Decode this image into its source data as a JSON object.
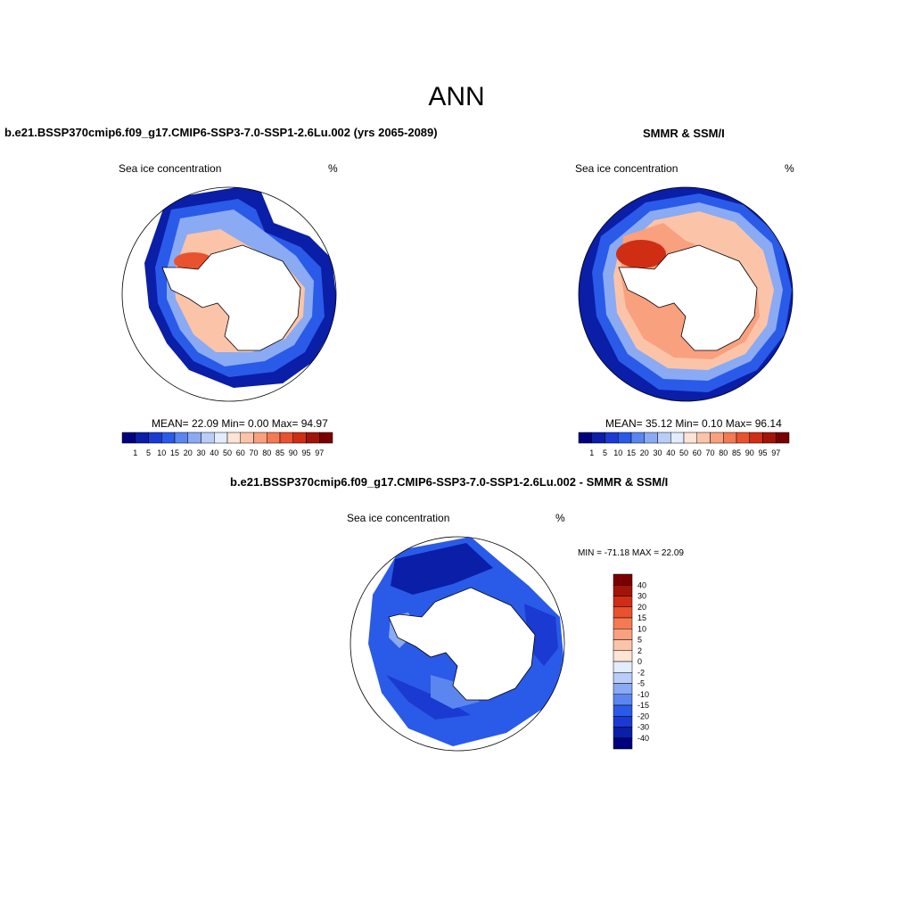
{
  "page": {
    "title": "ANN"
  },
  "panels": {
    "left": {
      "title": "b.e21.BSSP370cmip6.f09_g17.CMIP6-SSP3-7.0-SSP1-2.6Lu.002 (yrs 2065-2089)",
      "variable_label": "Sea ice concentration",
      "units": "%",
      "stats": "MEAN=  22.09  Min=   0.00  Max=  94.97"
    },
    "right": {
      "title": "SMMR & SSM/I",
      "variable_label": "Sea ice concentration",
      "units": "%",
      "stats": "MEAN=  35.12  Min=   0.10  Max=  96.14"
    },
    "diff": {
      "title": "b.e21.BSSP370cmip6.f09_g17.CMIP6-SSP3-7.0-SSP1-2.6Lu.002 - SMMR & SSM/I",
      "variable_label": "Sea ice concentration",
      "units": "%",
      "stats": "MIN = -71.18 MAX =  22.09"
    }
  },
  "colorbar_concentration": {
    "labels": [
      "1",
      "5",
      "10",
      "15",
      "20",
      "30",
      "40",
      "50",
      "60",
      "70",
      "80",
      "85",
      "90",
      "95",
      "97"
    ],
    "colors": [
      "#00007f",
      "#0a1ea8",
      "#1a3ad2",
      "#2a5ae8",
      "#5b86f0",
      "#8aaaf4",
      "#b8cdf8",
      "#e2ecfc",
      "#fde4d4",
      "#fbc4a8",
      "#f9a07e",
      "#f47a54",
      "#e9522e",
      "#cf2e14",
      "#a21408",
      "#7a0000"
    ]
  },
  "colorbar_difference": {
    "labels": [
      "40",
      "30",
      "20",
      "15",
      "10",
      "5",
      "2",
      "0",
      "-2",
      "-5",
      "-10",
      "-15",
      "-20",
      "-30",
      "-40"
    ],
    "colors": [
      "#7a0000",
      "#a21408",
      "#cf2e14",
      "#e9522e",
      "#f47a54",
      "#f9a07e",
      "#fbc4a8",
      "#fde4d4",
      "#e2ecfc",
      "#b8cdf8",
      "#8aaaf4",
      "#5b86f0",
      "#2a5ae8",
      "#1a3ad2",
      "#0a1ea8",
      "#00007f"
    ]
  }
}
